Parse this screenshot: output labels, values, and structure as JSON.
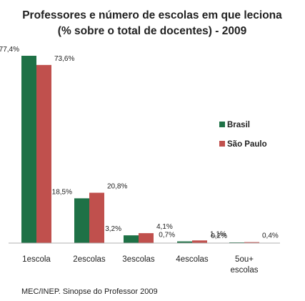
{
  "chart_data": {
    "type": "bar",
    "title": "Professores e número de escolas em que leciona",
    "subtitle": "(% sobre o total de docentes) - 2009",
    "source": "MEC/INEP. Sinopse do Professor 2009",
    "categories": [
      [
        "1escola"
      ],
      [
        "2escolas"
      ],
      [
        "3escolas"
      ],
      [
        "4escolas"
      ],
      [
        "5ou+",
        "escolas"
      ]
    ],
    "series": [
      {
        "name": "Brasil",
        "color": "#1e7146",
        "values": [
          77.4,
          18.5,
          3.2,
          0.7,
          0.2
        ],
        "labels": [
          "77,4%",
          "18,5%",
          "3,2%",
          "0,7%",
          "0,2%"
        ]
      },
      {
        "name": "São Paulo",
        "color": "#c0504d",
        "values": [
          73.6,
          20.8,
          4.1,
          1.1,
          0.4
        ],
        "labels": [
          "73,6%",
          "20,8%",
          "4,1%",
          "1,1%",
          "0,4%"
        ]
      }
    ],
    "ylim": [
      0,
      77.4
    ],
    "legend": "right",
    "grid": false
  }
}
